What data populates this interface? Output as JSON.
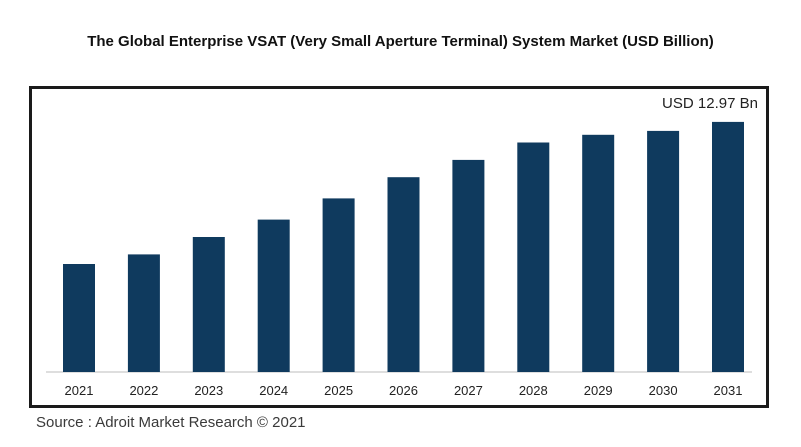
{
  "chart_data": {
    "type": "bar",
    "title": "The Global Enterprise VSAT (Very Small Aperture Terminal) System Market (USD Billion)",
    "categories": [
      "2021",
      "2022",
      "2023",
      "2024",
      "2025",
      "2026",
      "2027",
      "2028",
      "2029",
      "2030",
      "2031"
    ],
    "values": [
      5.6,
      6.1,
      7.0,
      7.9,
      9.0,
      10.1,
      11.0,
      11.9,
      12.3,
      12.5,
      12.97
    ],
    "annotation": "USD 12.97 Bn",
    "xlabel": "",
    "ylabel": "",
    "ylim": [
      0,
      14
    ],
    "grid": false,
    "bar_color": "#0f3a5e",
    "source": "Source : Adroit Market Research © 2021"
  }
}
